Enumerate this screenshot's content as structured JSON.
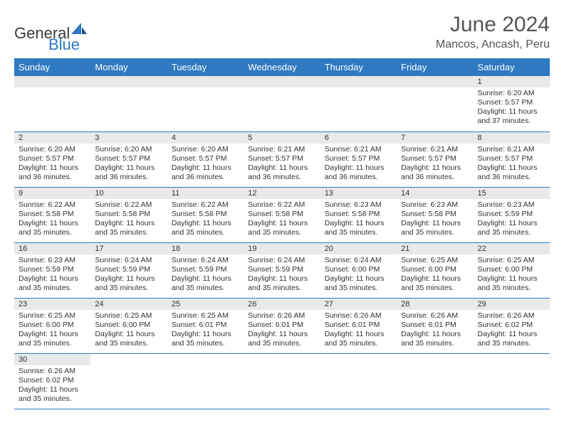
{
  "brand": {
    "part1": "General",
    "part2": "Blue"
  },
  "title": "June 2024",
  "location": "Mancos, Ancash, Peru",
  "colors": {
    "header_bg": "#2f78c2",
    "header_text": "#ffffff",
    "daynum_bg": "#e9e9e9",
    "row_border": "#2f78c2",
    "text": "#333333",
    "title_text": "#555555"
  },
  "day_headers": [
    "Sunday",
    "Monday",
    "Tuesday",
    "Wednesday",
    "Thursday",
    "Friday",
    "Saturday"
  ],
  "weeks": [
    [
      null,
      null,
      null,
      null,
      null,
      null,
      {
        "n": "1",
        "sunrise": "Sunrise: 6:20 AM",
        "sunset": "Sunset: 5:57 PM",
        "daylight": "Daylight: 11 hours and 37 minutes."
      }
    ],
    [
      {
        "n": "2",
        "sunrise": "Sunrise: 6:20 AM",
        "sunset": "Sunset: 5:57 PM",
        "daylight": "Daylight: 11 hours and 36 minutes."
      },
      {
        "n": "3",
        "sunrise": "Sunrise: 6:20 AM",
        "sunset": "Sunset: 5:57 PM",
        "daylight": "Daylight: 11 hours and 36 minutes."
      },
      {
        "n": "4",
        "sunrise": "Sunrise: 6:20 AM",
        "sunset": "Sunset: 5:57 PM",
        "daylight": "Daylight: 11 hours and 36 minutes."
      },
      {
        "n": "5",
        "sunrise": "Sunrise: 6:21 AM",
        "sunset": "Sunset: 5:57 PM",
        "daylight": "Daylight: 11 hours and 36 minutes."
      },
      {
        "n": "6",
        "sunrise": "Sunrise: 6:21 AM",
        "sunset": "Sunset: 5:57 PM",
        "daylight": "Daylight: 11 hours and 36 minutes."
      },
      {
        "n": "7",
        "sunrise": "Sunrise: 6:21 AM",
        "sunset": "Sunset: 5:57 PM",
        "daylight": "Daylight: 11 hours and 36 minutes."
      },
      {
        "n": "8",
        "sunrise": "Sunrise: 6:21 AM",
        "sunset": "Sunset: 5:57 PM",
        "daylight": "Daylight: 11 hours and 36 minutes."
      }
    ],
    [
      {
        "n": "9",
        "sunrise": "Sunrise: 6:22 AM",
        "sunset": "Sunset: 5:58 PM",
        "daylight": "Daylight: 11 hours and 35 minutes."
      },
      {
        "n": "10",
        "sunrise": "Sunrise: 6:22 AM",
        "sunset": "Sunset: 5:58 PM",
        "daylight": "Daylight: 11 hours and 35 minutes."
      },
      {
        "n": "11",
        "sunrise": "Sunrise: 6:22 AM",
        "sunset": "Sunset: 5:58 PM",
        "daylight": "Daylight: 11 hours and 35 minutes."
      },
      {
        "n": "12",
        "sunrise": "Sunrise: 6:22 AM",
        "sunset": "Sunset: 5:58 PM",
        "daylight": "Daylight: 11 hours and 35 minutes."
      },
      {
        "n": "13",
        "sunrise": "Sunrise: 6:23 AM",
        "sunset": "Sunset: 5:58 PM",
        "daylight": "Daylight: 11 hours and 35 minutes."
      },
      {
        "n": "14",
        "sunrise": "Sunrise: 6:23 AM",
        "sunset": "Sunset: 5:58 PM",
        "daylight": "Daylight: 11 hours and 35 minutes."
      },
      {
        "n": "15",
        "sunrise": "Sunrise: 6:23 AM",
        "sunset": "Sunset: 5:59 PM",
        "daylight": "Daylight: 11 hours and 35 minutes."
      }
    ],
    [
      {
        "n": "16",
        "sunrise": "Sunrise: 6:23 AM",
        "sunset": "Sunset: 5:59 PM",
        "daylight": "Daylight: 11 hours and 35 minutes."
      },
      {
        "n": "17",
        "sunrise": "Sunrise: 6:24 AM",
        "sunset": "Sunset: 5:59 PM",
        "daylight": "Daylight: 11 hours and 35 minutes."
      },
      {
        "n": "18",
        "sunrise": "Sunrise: 6:24 AM",
        "sunset": "Sunset: 5:59 PM",
        "daylight": "Daylight: 11 hours and 35 minutes."
      },
      {
        "n": "19",
        "sunrise": "Sunrise: 6:24 AM",
        "sunset": "Sunset: 5:59 PM",
        "daylight": "Daylight: 11 hours and 35 minutes."
      },
      {
        "n": "20",
        "sunrise": "Sunrise: 6:24 AM",
        "sunset": "Sunset: 6:00 PM",
        "daylight": "Daylight: 11 hours and 35 minutes."
      },
      {
        "n": "21",
        "sunrise": "Sunrise: 6:25 AM",
        "sunset": "Sunset: 6:00 PM",
        "daylight": "Daylight: 11 hours and 35 minutes."
      },
      {
        "n": "22",
        "sunrise": "Sunrise: 6:25 AM",
        "sunset": "Sunset: 6:00 PM",
        "daylight": "Daylight: 11 hours and 35 minutes."
      }
    ],
    [
      {
        "n": "23",
        "sunrise": "Sunrise: 6:25 AM",
        "sunset": "Sunset: 6:00 PM",
        "daylight": "Daylight: 11 hours and 35 minutes."
      },
      {
        "n": "24",
        "sunrise": "Sunrise: 6:25 AM",
        "sunset": "Sunset: 6:00 PM",
        "daylight": "Daylight: 11 hours and 35 minutes."
      },
      {
        "n": "25",
        "sunrise": "Sunrise: 6:25 AM",
        "sunset": "Sunset: 6:01 PM",
        "daylight": "Daylight: 11 hours and 35 minutes."
      },
      {
        "n": "26",
        "sunrise": "Sunrise: 6:26 AM",
        "sunset": "Sunset: 6:01 PM",
        "daylight": "Daylight: 11 hours and 35 minutes."
      },
      {
        "n": "27",
        "sunrise": "Sunrise: 6:26 AM",
        "sunset": "Sunset: 6:01 PM",
        "daylight": "Daylight: 11 hours and 35 minutes."
      },
      {
        "n": "28",
        "sunrise": "Sunrise: 6:26 AM",
        "sunset": "Sunset: 6:01 PM",
        "daylight": "Daylight: 11 hours and 35 minutes."
      },
      {
        "n": "29",
        "sunrise": "Sunrise: 6:26 AM",
        "sunset": "Sunset: 6:02 PM",
        "daylight": "Daylight: 11 hours and 35 minutes."
      }
    ],
    [
      {
        "n": "30",
        "sunrise": "Sunrise: 6:26 AM",
        "sunset": "Sunset: 6:02 PM",
        "daylight": "Daylight: 11 hours and 35 minutes."
      },
      null,
      null,
      null,
      null,
      null,
      null
    ]
  ]
}
